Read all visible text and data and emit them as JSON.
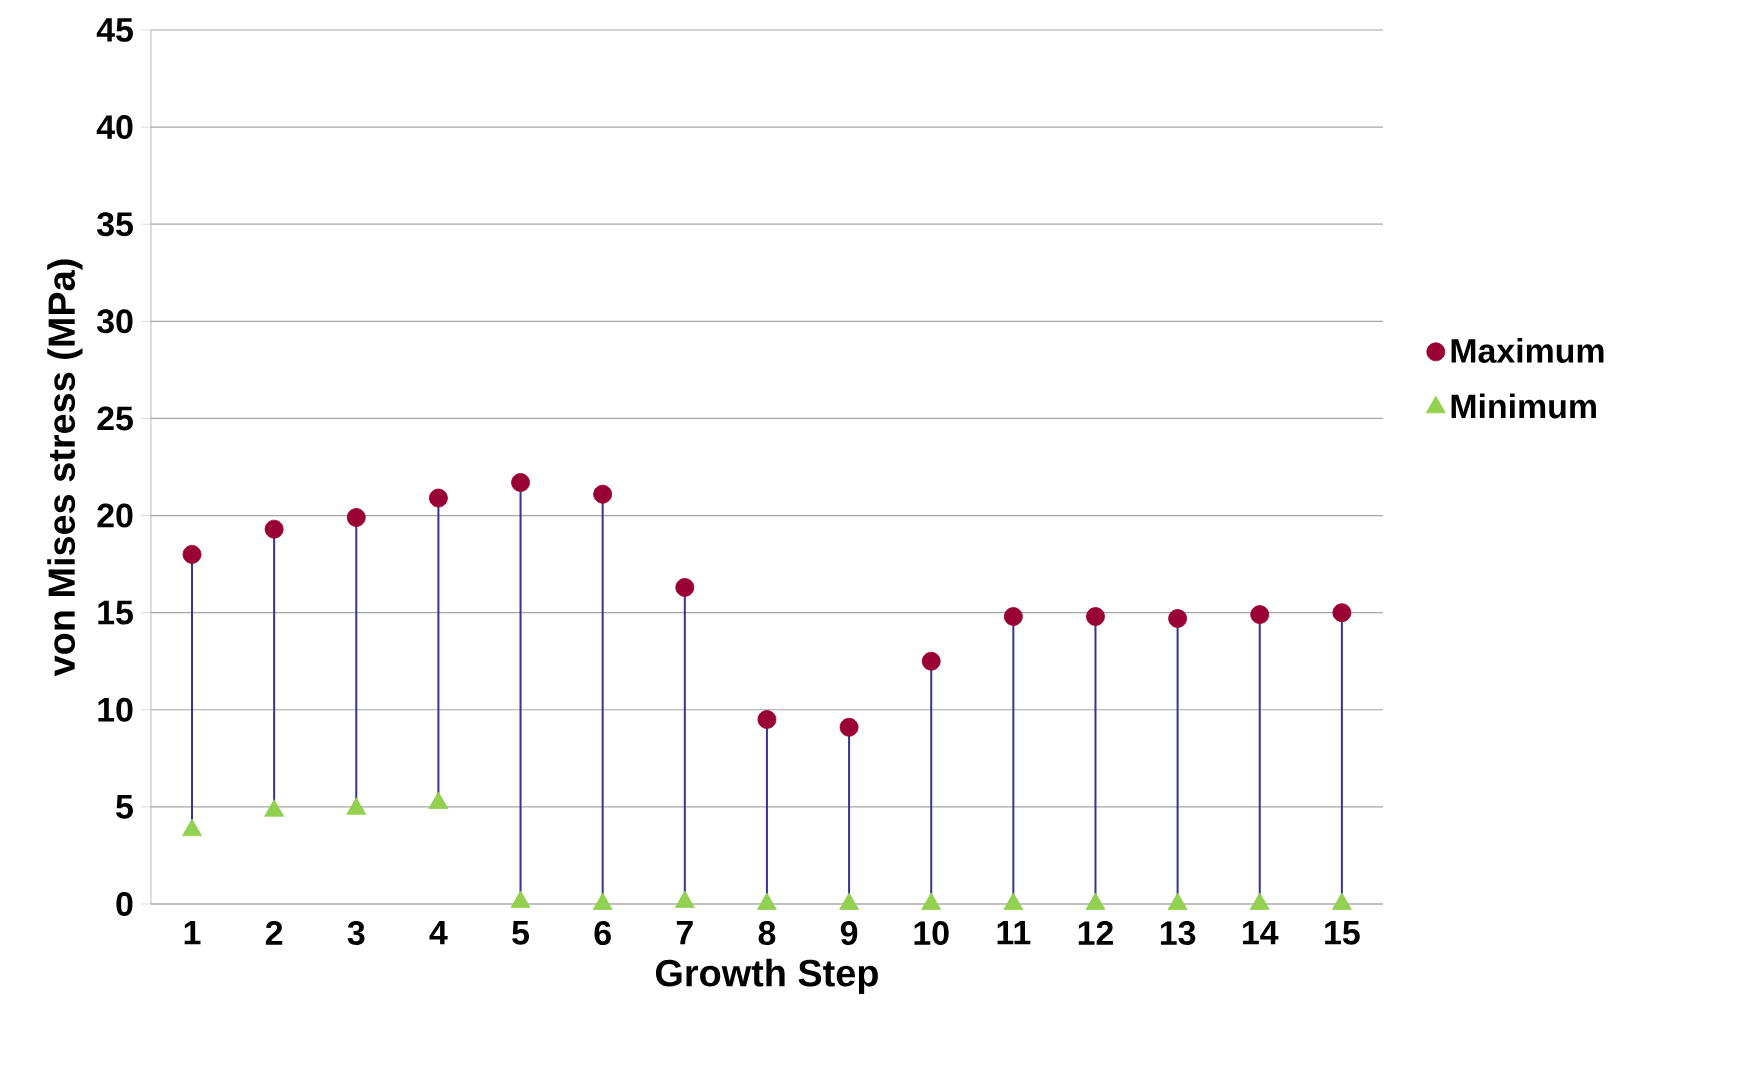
{
  "chart_data": {
    "type": "scatter",
    "xlabel": "Growth Step",
    "ylabel": "von Mises stress (MPa)",
    "categories": [
      "1",
      "2",
      "3",
      "4",
      "5",
      "6",
      "7",
      "8",
      "9",
      "10",
      "11",
      "12",
      "13",
      "14",
      "15"
    ],
    "series": [
      {
        "name": "Maximum",
        "color": "#990033",
        "marker": "circle",
        "values": [
          18.0,
          19.3,
          19.9,
          20.9,
          21.7,
          21.1,
          16.3,
          9.5,
          9.1,
          12.5,
          14.8,
          14.8,
          14.7,
          14.9,
          15.0
        ]
      },
      {
        "name": "Minimum",
        "color": "#92d050",
        "marker": "triangle",
        "values": [
          3.8,
          4.8,
          4.9,
          5.2,
          0.1,
          0,
          0.1,
          0,
          0,
          0,
          0,
          0,
          0,
          0,
          0
        ]
      }
    ],
    "ylim": [
      0,
      45
    ],
    "yticks": [
      0,
      5,
      10,
      15,
      20,
      25,
      30,
      35,
      40,
      45
    ],
    "grid": "y",
    "legend": "right"
  }
}
